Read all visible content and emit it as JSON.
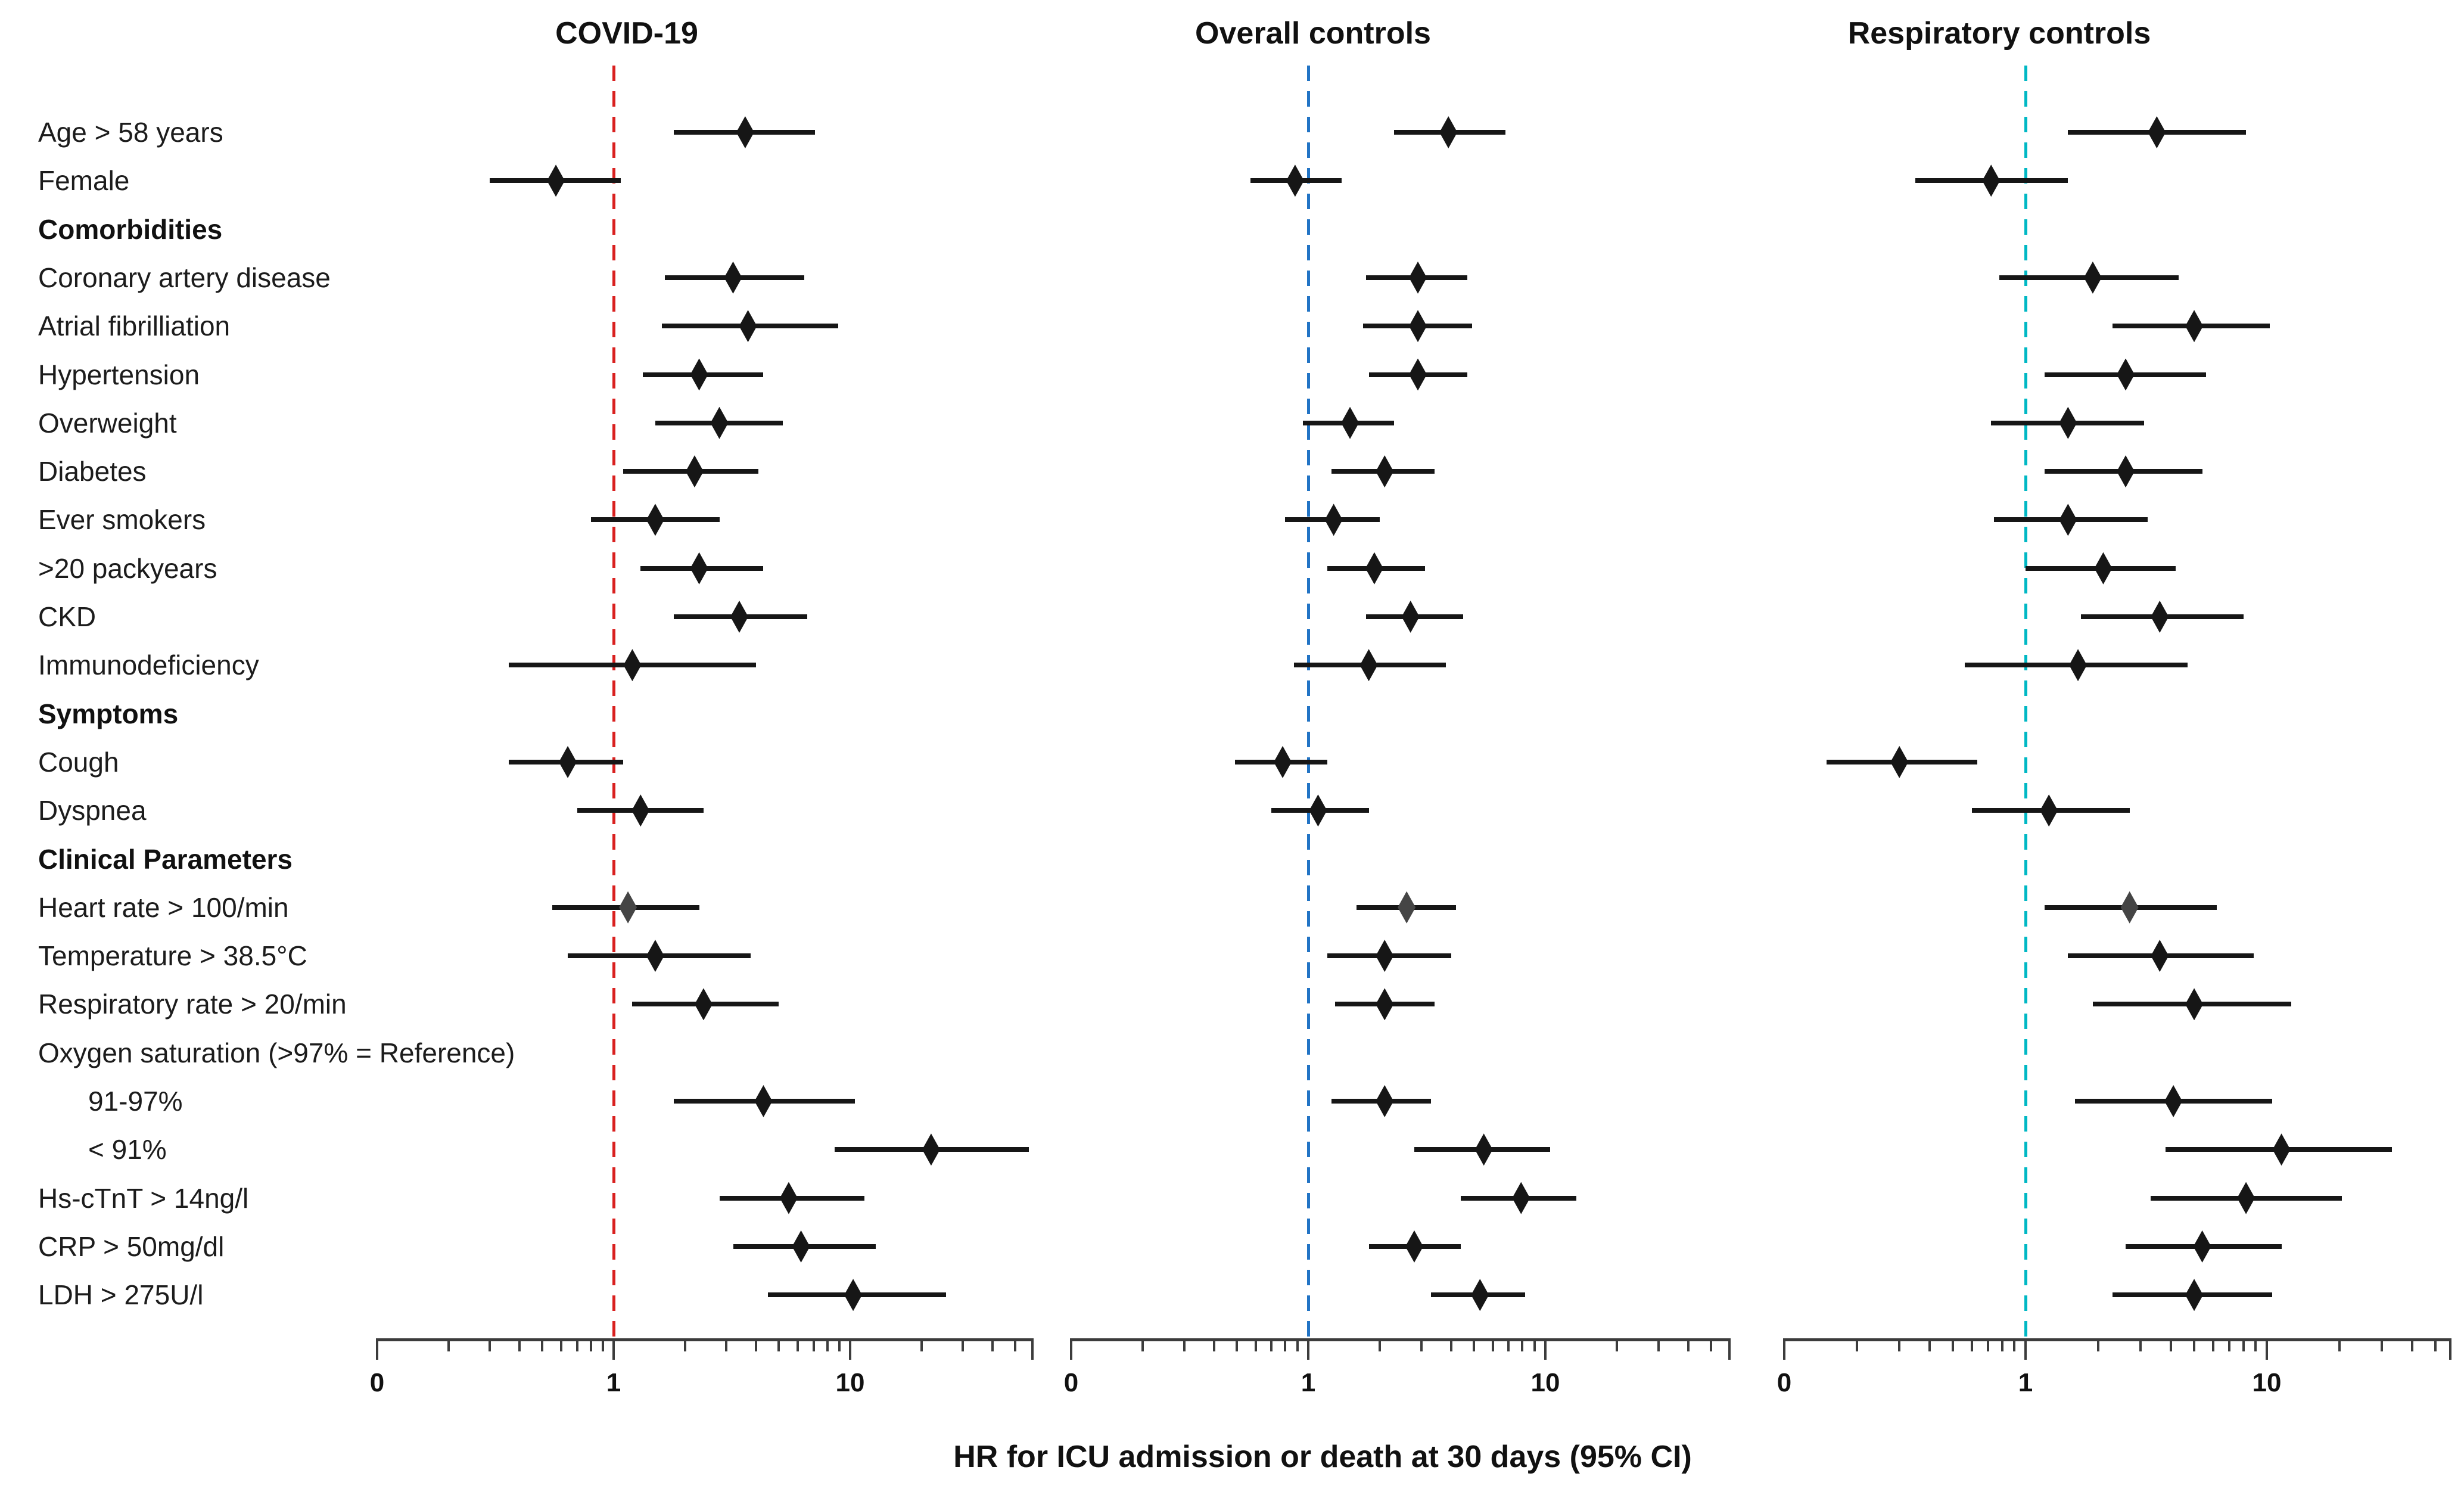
{
  "chart_data": {
    "type": "scatter",
    "variant": "forest-plot",
    "xlabel": "HR for ICU admission or death at 30 days (95% CI)",
    "x_scale": "log",
    "x_axis": {
      "tick_labels": [
        "0",
        "1",
        "10"
      ],
      "tick_values": [
        0.1,
        1,
        10
      ],
      "minor_tick_values": [
        0.2,
        0.3,
        0.4,
        0.5,
        0.6,
        0.7,
        0.8,
        0.9,
        2,
        3,
        4,
        5,
        6,
        7,
        8,
        9,
        20,
        30,
        40,
        50
      ],
      "min": 0.1,
      "max": 60,
      "note": "log scale; leftmost tick labeled 0"
    },
    "reference_line_value": 1,
    "grid": "off",
    "legend": "none",
    "point_color": "#161616",
    "ci_color": "#161616",
    "panels": [
      {
        "id": "covid",
        "title": "COVID-19",
        "ref_line_color": "#d9201f"
      },
      {
        "id": "overall",
        "title": "Overall controls",
        "ref_line_color": "#2274c5"
      },
      {
        "id": "respiratory",
        "title": "Respiratory controls",
        "ref_line_color": "#00b8c4"
      }
    ],
    "rows": [
      {
        "label": "Age > 58 years",
        "type": "data",
        "indent": 0,
        "estimates": {
          "covid": {
            "hr": 3.6,
            "lo": 1.8,
            "hi": 7.1
          },
          "overall": {
            "hr": 3.9,
            "lo": 2.3,
            "hi": 6.8
          },
          "respiratory": {
            "hr": 3.5,
            "lo": 1.5,
            "hi": 8.2
          }
        }
      },
      {
        "label": "Female",
        "type": "data",
        "indent": 0,
        "estimates": {
          "covid": {
            "hr": 0.57,
            "lo": 0.3,
            "hi": 1.07
          },
          "overall": {
            "hr": 0.88,
            "lo": 0.57,
            "hi": 1.38
          },
          "respiratory": {
            "hr": 0.72,
            "lo": 0.35,
            "hi": 1.5
          }
        }
      },
      {
        "label": "Comorbidities",
        "type": "header",
        "indent": 0,
        "estimates": null
      },
      {
        "label": "Coronary artery disease",
        "type": "data",
        "indent": 0,
        "estimates": {
          "covid": {
            "hr": 3.2,
            "lo": 1.65,
            "hi": 6.4
          },
          "overall": {
            "hr": 2.9,
            "lo": 1.75,
            "hi": 4.7
          },
          "respiratory": {
            "hr": 1.9,
            "lo": 0.78,
            "hi": 4.3
          }
        }
      },
      {
        "label": "Atrial fibrilliation",
        "type": "data",
        "indent": 0,
        "estimates": {
          "covid": {
            "hr": 3.7,
            "lo": 1.6,
            "hi": 8.9
          },
          "overall": {
            "hr": 2.9,
            "lo": 1.7,
            "hi": 4.9
          },
          "respiratory": {
            "hr": 5.0,
            "lo": 2.3,
            "hi": 10.3
          }
        }
      },
      {
        "label": "Hypertension",
        "type": "data",
        "indent": 0,
        "estimates": {
          "covid": {
            "hr": 2.3,
            "lo": 1.33,
            "hi": 4.3
          },
          "overall": {
            "hr": 2.9,
            "lo": 1.8,
            "hi": 4.7
          },
          "respiratory": {
            "hr": 2.6,
            "lo": 1.2,
            "hi": 5.6
          }
        }
      },
      {
        "label": "Overweight",
        "type": "data",
        "indent": 0,
        "estimates": {
          "covid": {
            "hr": 2.8,
            "lo": 1.5,
            "hi": 5.2
          },
          "overall": {
            "hr": 1.5,
            "lo": 0.95,
            "hi": 2.3
          },
          "respiratory": {
            "hr": 1.5,
            "lo": 0.72,
            "hi": 3.1
          }
        }
      },
      {
        "label": "Diabetes",
        "type": "data",
        "indent": 0,
        "estimates": {
          "covid": {
            "hr": 2.2,
            "lo": 1.1,
            "hi": 4.1
          },
          "overall": {
            "hr": 2.1,
            "lo": 1.25,
            "hi": 3.4
          },
          "respiratory": {
            "hr": 2.6,
            "lo": 1.2,
            "hi": 5.4
          }
        }
      },
      {
        "label": "Ever smokers",
        "type": "data",
        "indent": 0,
        "estimates": {
          "covid": {
            "hr": 1.5,
            "lo": 0.8,
            "hi": 2.8
          },
          "overall": {
            "hr": 1.28,
            "lo": 0.8,
            "hi": 2.0
          },
          "respiratory": {
            "hr": 1.5,
            "lo": 0.74,
            "hi": 3.2
          }
        }
      },
      {
        "label": ">20 packyears",
        "type": "data",
        "indent": 0,
        "estimates": {
          "covid": {
            "hr": 2.3,
            "lo": 1.3,
            "hi": 4.3
          },
          "overall": {
            "hr": 1.9,
            "lo": 1.2,
            "hi": 3.1
          },
          "respiratory": {
            "hr": 2.1,
            "lo": 1.0,
            "hi": 4.2
          }
        }
      },
      {
        "label": "CKD",
        "type": "data",
        "indent": 0,
        "estimates": {
          "covid": {
            "hr": 3.4,
            "lo": 1.8,
            "hi": 6.6
          },
          "overall": {
            "hr": 2.7,
            "lo": 1.75,
            "hi": 4.5
          },
          "respiratory": {
            "hr": 3.6,
            "lo": 1.7,
            "hi": 8.0
          }
        }
      },
      {
        "label": "Immunodeficiency",
        "type": "data",
        "indent": 0,
        "estimates": {
          "covid": {
            "hr": 1.2,
            "lo": 0.36,
            "hi": 4.0
          },
          "overall": {
            "hr": 1.8,
            "lo": 0.87,
            "hi": 3.8
          },
          "respiratory": {
            "hr": 1.65,
            "lo": 0.56,
            "hi": 4.7
          }
        }
      },
      {
        "label": "Symptoms",
        "type": "header",
        "indent": 0,
        "estimates": null
      },
      {
        "label": "Cough",
        "type": "data",
        "indent": 0,
        "estimates": {
          "covid": {
            "hr": 0.64,
            "lo": 0.36,
            "hi": 1.1
          },
          "overall": {
            "hr": 0.78,
            "lo": 0.49,
            "hi": 1.2
          },
          "respiratory": {
            "hr": 0.3,
            "lo": 0.15,
            "hi": 0.63
          }
        }
      },
      {
        "label": "Dyspnea",
        "type": "data",
        "indent": 0,
        "estimates": {
          "covid": {
            "hr": 1.3,
            "lo": 0.7,
            "hi": 2.4
          },
          "overall": {
            "hr": 1.1,
            "lo": 0.7,
            "hi": 1.8
          },
          "respiratory": {
            "hr": 1.25,
            "lo": 0.6,
            "hi": 2.7
          }
        }
      },
      {
        "label": "Clinical Parameters",
        "type": "header",
        "indent": 0,
        "estimates": null
      },
      {
        "label": "Heart rate > 100/min",
        "type": "data",
        "indent": 0,
        "point_color": "#454545",
        "estimates": {
          "covid": {
            "hr": 1.15,
            "lo": 0.55,
            "hi": 2.3
          },
          "overall": {
            "hr": 2.6,
            "lo": 1.6,
            "hi": 4.2
          },
          "respiratory": {
            "hr": 2.7,
            "lo": 1.2,
            "hi": 6.2
          }
        }
      },
      {
        "label": "Temperature > 38.5°C",
        "type": "data",
        "indent": 0,
        "estimates": {
          "covid": {
            "hr": 1.5,
            "lo": 0.64,
            "hi": 3.8
          },
          "overall": {
            "hr": 2.1,
            "lo": 1.2,
            "hi": 4.0
          },
          "respiratory": {
            "hr": 3.6,
            "lo": 1.5,
            "hi": 8.8
          }
        }
      },
      {
        "label": "Respiratory rate > 20/min",
        "type": "data",
        "indent": 0,
        "estimates": {
          "covid": {
            "hr": 2.4,
            "lo": 1.2,
            "hi": 5.0
          },
          "overall": {
            "hr": 2.1,
            "lo": 1.3,
            "hi": 3.4
          },
          "respiratory": {
            "hr": 5.0,
            "lo": 1.9,
            "hi": 12.6
          }
        }
      },
      {
        "label": "Oxygen saturation (>97% = Reference)",
        "type": "data",
        "indent": 0,
        "estimates": null
      },
      {
        "label": "91-97%",
        "type": "data",
        "indent": 1,
        "estimates": {
          "covid": {
            "hr": 4.3,
            "lo": 1.8,
            "hi": 10.5
          },
          "overall": {
            "hr": 2.1,
            "lo": 1.25,
            "hi": 3.3
          },
          "respiratory": {
            "hr": 4.1,
            "lo": 1.6,
            "hi": 10.5
          }
        }
      },
      {
        "label": "< 91%",
        "type": "data",
        "indent": 1,
        "estimates": {
          "covid": {
            "hr": 22,
            "lo": 8.6,
            "hi": 57
          },
          "overall": {
            "hr": 5.5,
            "lo": 2.8,
            "hi": 10.5
          },
          "respiratory": {
            "hr": 11.5,
            "lo": 3.8,
            "hi": 33
          }
        }
      },
      {
        "label": "Hs-cTnT > 14ng/l",
        "type": "data",
        "indent": 0,
        "estimates": {
          "covid": {
            "hr": 5.5,
            "lo": 2.8,
            "hi": 11.5
          },
          "overall": {
            "hr": 7.9,
            "lo": 4.4,
            "hi": 13.5
          },
          "respiratory": {
            "hr": 8.2,
            "lo": 3.3,
            "hi": 20.5
          }
        }
      },
      {
        "label": "CRP > 50mg/dl",
        "type": "data",
        "indent": 0,
        "estimates": {
          "covid": {
            "hr": 6.2,
            "lo": 3.2,
            "hi": 12.8
          },
          "overall": {
            "hr": 2.8,
            "lo": 1.8,
            "hi": 4.4
          },
          "respiratory": {
            "hr": 5.4,
            "lo": 2.6,
            "hi": 11.5
          }
        }
      },
      {
        "label": "LDH > 275U/l",
        "type": "data",
        "indent": 0,
        "estimates": {
          "covid": {
            "hr": 10.3,
            "lo": 4.5,
            "hi": 25.5
          },
          "overall": {
            "hr": 5.3,
            "lo": 3.3,
            "hi": 8.2
          },
          "respiratory": {
            "hr": 5.0,
            "lo": 2.3,
            "hi": 10.5
          }
        }
      }
    ]
  }
}
